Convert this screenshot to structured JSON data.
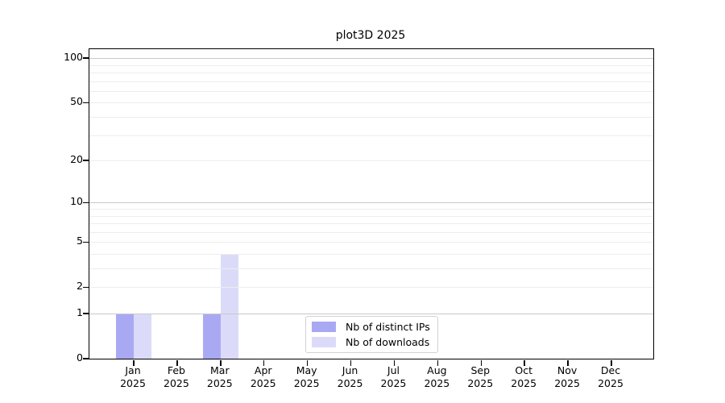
{
  "chart_data": {
    "type": "bar",
    "title": "plot3D 2025",
    "categories": [
      "Jan",
      "Feb",
      "Mar",
      "Apr",
      "May",
      "Jun",
      "Jul",
      "Aug",
      "Sep",
      "Oct",
      "Nov",
      "Dec"
    ],
    "category_year": "2025",
    "series": [
      {
        "name": "Nb of distinct IPs",
        "color": "#a9a9f3",
        "values": [
          1,
          0,
          1,
          0,
          0,
          0,
          0,
          0,
          0,
          0,
          0,
          0
        ]
      },
      {
        "name": "Nb of downloads",
        "color": "#dbdbf9",
        "values": [
          1,
          0,
          4,
          0,
          0,
          0,
          0,
          0,
          0,
          0,
          0,
          0
        ]
      }
    ],
    "xlabel": "",
    "ylabel": "",
    "y_scale": "log10(1+value)",
    "ylim": [
      0,
      115
    ],
    "y_ticks_labeled": [
      0,
      1,
      2,
      5,
      10,
      20,
      50,
      100
    ],
    "y_gridlines_major": [
      1,
      10,
      100
    ],
    "y_gridlines_minor": [
      2,
      3,
      4,
      5,
      6,
      7,
      8,
      9,
      20,
      30,
      40,
      50,
      60,
      70,
      80,
      90
    ],
    "grid": true,
    "legend": {
      "position": "inside-bottom-center",
      "entries": [
        "Nb of distinct IPs",
        "Nb of downloads"
      ]
    },
    "colors": {
      "axis": "#000000",
      "text": "#000000",
      "grid_major": "#c8c8c8",
      "grid_minor": "#ededed",
      "legend_border": "#d2d2d2",
      "background": "#ffffff"
    }
  }
}
